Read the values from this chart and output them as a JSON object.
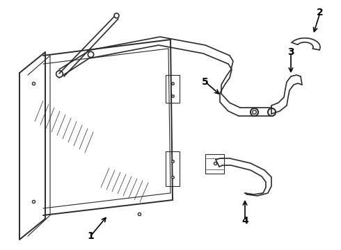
{
  "background_color": "#ffffff",
  "line_color": "#2a2a2a",
  "label_color": "#000000",
  "figsize": [
    4.9,
    3.6
  ],
  "dpi": 100,
  "lw_main": 1.4,
  "lw_pipe": 1.2,
  "lw_thin": 0.8
}
